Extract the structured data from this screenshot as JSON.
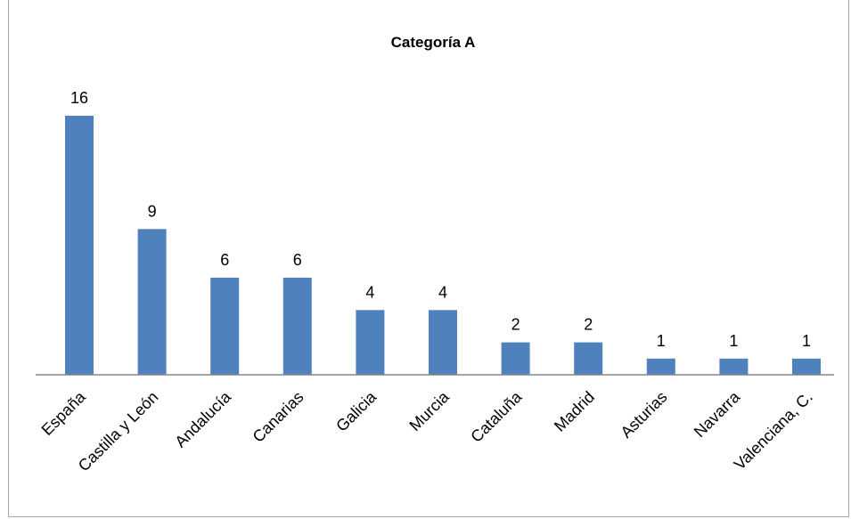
{
  "chart_data": {
    "type": "bar",
    "title": "Categoría A",
    "categories": [
      "España",
      "Castilla y León",
      "Andalucía",
      "Canarias",
      "Galicia",
      "Murcia",
      "Cataluña",
      "Madrid",
      "Asturias",
      "Navarra",
      "Valenciana, C."
    ],
    "values": [
      16,
      9,
      6,
      6,
      4,
      4,
      2,
      2,
      1,
      1,
      1
    ],
    "bar_color": "#4f81bd",
    "data_labels": true,
    "grid": false,
    "legend": "none",
    "ylim": [
      0,
      16
    ]
  }
}
